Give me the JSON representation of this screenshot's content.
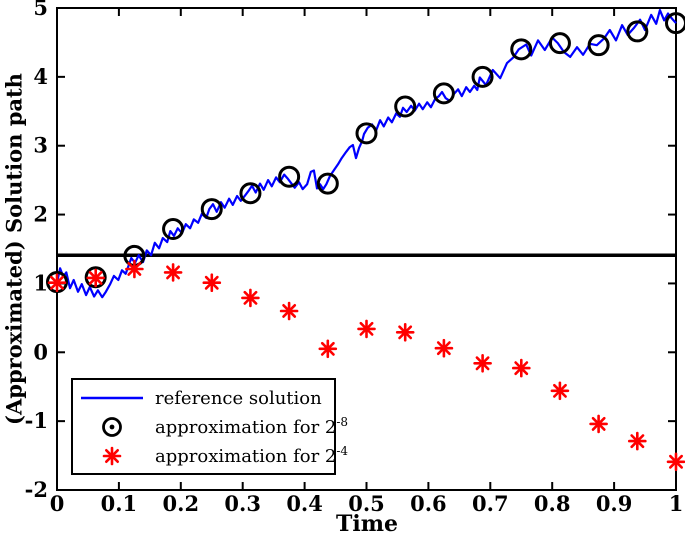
{
  "figure": {
    "background": "#ffffff",
    "text_color": "#000000"
  },
  "chart_data": {
    "type": "line",
    "title": "",
    "xlabel": "Time",
    "ylabel": "(Approximated) Solution path",
    "xlim": [
      0,
      1
    ],
    "ylim": [
      -2,
      5
    ],
    "x_ticks": [
      0,
      0.1,
      0.2,
      0.3,
      0.4,
      0.5,
      0.6,
      0.7,
      0.8,
      0.9,
      1
    ],
    "x_tick_labels": [
      "0",
      "0.1",
      "0.2",
      "0.3",
      "0.4",
      "0.5",
      "0.6",
      "0.7",
      "0.8",
      "0.9",
      "1"
    ],
    "y_ticks": [
      -2,
      -1,
      0,
      1,
      2,
      3,
      4,
      5
    ],
    "y_tick_labels": [
      "-2",
      "-1",
      "0",
      "1",
      "2",
      "3",
      "4",
      "5"
    ],
    "grid": "off",
    "box": "on",
    "divider_line_y": 1.41,
    "legend_position": "lower left",
    "approx_times": [
      0,
      0.0625,
      0.125,
      0.1875,
      0.25,
      0.3125,
      0.375,
      0.4375,
      0.5,
      0.5625,
      0.625,
      0.6875,
      0.75,
      0.8125,
      0.875,
      0.9375,
      1
    ],
    "series": [
      {
        "name": "reference solution",
        "type": "line",
        "color": "#0000ff",
        "points": [
          [
            0,
            1.01
          ],
          [
            0.005,
            1.22
          ],
          [
            0.01,
            1.1
          ],
          [
            0.015,
            1.16
          ],
          [
            0.021,
            0.93
          ],
          [
            0.027,
            1.05
          ],
          [
            0.034,
            0.88
          ],
          [
            0.04,
            0.99
          ],
          [
            0.047,
            0.83
          ],
          [
            0.053,
            0.95
          ],
          [
            0.06,
            0.81
          ],
          [
            0.066,
            0.9
          ],
          [
            0.073,
            0.8
          ],
          [
            0.079,
            0.88
          ],
          [
            0.086,
            0.99
          ],
          [
            0.092,
            1.11
          ],
          [
            0.099,
            1.05
          ],
          [
            0.105,
            1.19
          ],
          [
            0.111,
            1.14
          ],
          [
            0.12,
            1.37
          ],
          [
            0.126,
            1.3
          ],
          [
            0.132,
            1.41
          ],
          [
            0.139,
            1.31
          ],
          [
            0.145,
            1.48
          ],
          [
            0.152,
            1.41
          ],
          [
            0.158,
            1.59
          ],
          [
            0.165,
            1.51
          ],
          [
            0.171,
            1.66
          ],
          [
            0.178,
            1.6
          ],
          [
            0.183,
            1.76
          ],
          [
            0.189,
            1.69
          ],
          [
            0.195,
            1.8
          ],
          [
            0.202,
            1.73
          ],
          [
            0.208,
            1.86
          ],
          [
            0.215,
            1.8
          ],
          [
            0.221,
            1.93
          ],
          [
            0.228,
            1.88
          ],
          [
            0.234,
            2.01
          ],
          [
            0.241,
            1.95
          ],
          [
            0.246,
            2.08
          ],
          [
            0.252,
            2.15
          ],
          [
            0.258,
            2.04
          ],
          [
            0.265,
            2.18
          ],
          [
            0.271,
            2.1
          ],
          [
            0.278,
            2.23
          ],
          [
            0.284,
            2.14
          ],
          [
            0.291,
            2.27
          ],
          [
            0.297,
            2.2
          ],
          [
            0.304,
            2.28
          ],
          [
            0.309,
            2.34
          ],
          [
            0.315,
            2.42
          ],
          [
            0.321,
            2.32
          ],
          [
            0.328,
            2.45
          ],
          [
            0.334,
            2.36
          ],
          [
            0.341,
            2.5
          ],
          [
            0.347,
            2.41
          ],
          [
            0.354,
            2.54
          ],
          [
            0.36,
            2.47
          ],
          [
            0.367,
            2.58
          ],
          [
            0.372,
            2.53
          ],
          [
            0.378,
            2.46
          ],
          [
            0.384,
            2.39
          ],
          [
            0.391,
            2.47
          ],
          [
            0.397,
            2.37
          ],
          [
            0.404,
            2.44
          ],
          [
            0.41,
            2.62
          ],
          [
            0.415,
            2.64
          ],
          [
            0.42,
            2.38
          ],
          [
            0.425,
            2.44
          ],
          [
            0.43,
            2.37
          ],
          [
            0.435,
            2.44
          ],
          [
            0.441,
            2.56
          ],
          [
            0.447,
            2.64
          ],
          [
            0.454,
            2.73
          ],
          [
            0.46,
            2.82
          ],
          [
            0.467,
            2.91
          ],
          [
            0.473,
            2.98
          ],
          [
            0.478,
            3.01
          ],
          [
            0.483,
            2.82
          ],
          [
            0.488,
            2.97
          ],
          [
            0.493,
            3.07
          ],
          [
            0.496,
            3.17
          ],
          [
            0.502,
            3.26
          ],
          [
            0.509,
            3.31
          ],
          [
            0.515,
            3.21
          ],
          [
            0.522,
            3.37
          ],
          [
            0.528,
            3.28
          ],
          [
            0.535,
            3.41
          ],
          [
            0.541,
            3.34
          ],
          [
            0.548,
            3.47
          ],
          [
            0.554,
            3.42
          ],
          [
            0.559,
            3.55
          ],
          [
            0.565,
            3.49
          ],
          [
            0.572,
            3.58
          ],
          [
            0.578,
            3.51
          ],
          [
            0.585,
            3.61
          ],
          [
            0.591,
            3.53
          ],
          [
            0.598,
            3.63
          ],
          [
            0.604,
            3.56
          ],
          [
            0.611,
            3.68
          ],
          [
            0.617,
            3.72
          ],
          [
            0.622,
            3.78
          ],
          [
            0.628,
            3.69
          ],
          [
            0.635,
            3.65
          ],
          [
            0.641,
            3.75
          ],
          [
            0.648,
            3.82
          ],
          [
            0.654,
            3.72
          ],
          [
            0.661,
            3.85
          ],
          [
            0.667,
            3.78
          ],
          [
            0.674,
            3.87
          ],
          [
            0.679,
            3.81
          ],
          [
            0.683,
            3.99
          ],
          [
            0.693,
            3.88
          ],
          [
            0.704,
            4.1
          ],
          [
            0.716,
            3.98
          ],
          [
            0.727,
            4.2
          ],
          [
            0.737,
            4.28
          ],
          [
            0.746,
            4.4
          ],
          [
            0.758,
            4.47
          ],
          [
            0.766,
            4.31
          ],
          [
            0.777,
            4.53
          ],
          [
            0.788,
            4.39
          ],
          [
            0.8,
            4.57
          ],
          [
            0.809,
            4.49
          ],
          [
            0.819,
            4.36
          ],
          [
            0.829,
            4.29
          ],
          [
            0.84,
            4.43
          ],
          [
            0.85,
            4.32
          ],
          [
            0.861,
            4.48
          ],
          [
            0.872,
            4.46
          ],
          [
            0.884,
            4.56
          ],
          [
            0.893,
            4.68
          ],
          [
            0.903,
            4.53
          ],
          [
            0.913,
            4.75
          ],
          [
            0.922,
            4.61
          ],
          [
            0.932,
            4.71
          ],
          [
            0.942,
            4.83
          ],
          [
            0.95,
            4.68
          ],
          [
            0.96,
            4.9
          ],
          [
            0.968,
            4.77
          ],
          [
            0.974,
            4.97
          ],
          [
            0.981,
            4.82
          ],
          [
            0.987,
            4.92
          ],
          [
            0.993,
            4.85
          ],
          [
            1,
            4.78
          ]
        ]
      },
      {
        "name": "approximation for 2^-8",
        "type": "scatter",
        "marker": "circle",
        "color": "#000000",
        "values": [
          1.02,
          1.09,
          1.4,
          1.79,
          2.08,
          2.31,
          2.55,
          2.45,
          3.18,
          3.57,
          3.76,
          4.0,
          4.4,
          4.49,
          4.46,
          4.66,
          4.78
        ]
      },
      {
        "name": "approximation for 2^-4",
        "type": "scatter",
        "marker": "asterisk",
        "color": "#ff0000",
        "values": [
          1.01,
          1.08,
          1.21,
          1.16,
          1.01,
          0.79,
          0.6,
          0.05,
          0.34,
          0.29,
          0.06,
          -0.16,
          -0.23,
          -0.56,
          -1.04,
          -1.29,
          -1.59
        ]
      }
    ],
    "legend": {
      "entries": [
        {
          "label": "reference solution",
          "sup": ""
        },
        {
          "label": "approximation for 2",
          "sup": "-8"
        },
        {
          "label": "approximation for 2",
          "sup": "-4"
        }
      ]
    }
  }
}
